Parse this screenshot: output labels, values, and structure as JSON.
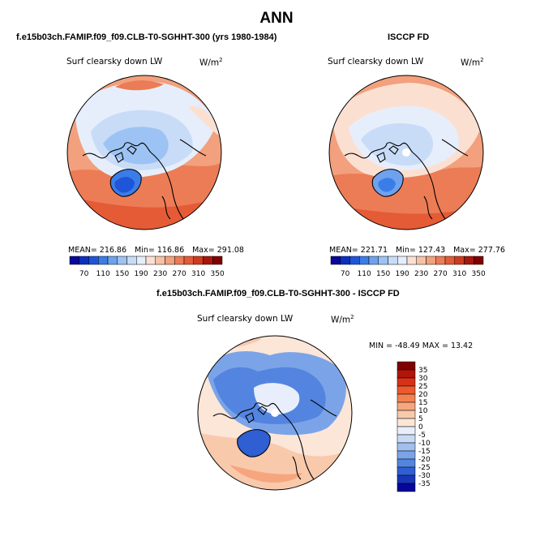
{
  "title": "ANN",
  "panel_left": {
    "case": "f.e15b03ch.FAMIP.f09_f09.CLB-T0-SGHHT-300 (yrs 1980-1984)",
    "variable": "Surf clearsky down LW",
    "units_base": "W/m",
    "units_exp": "2",
    "mean_text": "MEAN= 216.86",
    "min_text": "Min= 116.86",
    "max_text": "Max= 291.08"
  },
  "panel_right": {
    "case": "ISCCP FD",
    "variable": "Surf clearsky down LW",
    "units_base": "W/m",
    "units_exp": "2",
    "mean_text": "MEAN= 221.71",
    "min_text": "Min= 127.43",
    "max_text": "Max= 277.76"
  },
  "panel_diff": {
    "case": "f.e15b03ch.FAMIP.f09_f09.CLB-T0-SGHHT-300 - ISCCP FD",
    "variable": "Surf clearsky down LW",
    "units_base": "W/m",
    "units_exp": "2",
    "minmax_text": "MIN = -48.49 MAX =  13.42"
  },
  "chart_data": [
    {
      "type": "heatmap",
      "title": "Surf clearsky down LW",
      "projection": "north polar stereographic",
      "units": "W/m2",
      "stats": {
        "mean": 216.86,
        "min": 116.86,
        "max": 291.08
      },
      "colorbar": {
        "labels": [
          "70",
          "110",
          "150",
          "190",
          "230",
          "270",
          "310",
          "350"
        ],
        "colors": [
          "#08089a",
          "#0d2fbf",
          "#1f55d8",
          "#3b7de6",
          "#6fa2ee",
          "#9cc3f3",
          "#c8dcf8",
          "#e6eefb",
          "#fbe0d2",
          "#f6c2a7",
          "#f2a07d",
          "#ec7c56",
          "#e45b36",
          "#cf3b1c",
          "#a8170c",
          "#7f0000"
        ]
      }
    },
    {
      "type": "heatmap",
      "title": "Surf clearsky down LW",
      "projection": "north polar stereographic",
      "units": "W/m2",
      "stats": {
        "mean": 221.71,
        "min": 127.43,
        "max": 277.76
      },
      "colorbar": {
        "labels": [
          "70",
          "110",
          "150",
          "190",
          "230",
          "270",
          "310",
          "350"
        ],
        "colors": [
          "#08089a",
          "#0d2fbf",
          "#1f55d8",
          "#3b7de6",
          "#6fa2ee",
          "#9cc3f3",
          "#c8dcf8",
          "#e6eefb",
          "#fbe0d2",
          "#f6c2a7",
          "#f2a07d",
          "#ec7c56",
          "#e45b36",
          "#cf3b1c",
          "#a8170c",
          "#7f0000"
        ]
      }
    },
    {
      "type": "heatmap",
      "title": "Surf clearsky down LW",
      "projection": "north polar stereographic",
      "units": "W/m2",
      "stats": {
        "min": -48.49,
        "max": 13.42
      },
      "colorbar": {
        "labels": [
          "35",
          "30",
          "25",
          "20",
          "15",
          "10",
          "5",
          "0",
          "-5",
          "-10",
          "-15",
          "-20",
          "-25",
          "-30",
          "-35"
        ],
        "colors": [
          "#7f0000",
          "#b2150a",
          "#d73219",
          "#ec5a2d",
          "#f38251",
          "#f6a67e",
          "#f9c9ac",
          "#fbe6d8",
          "#e8eefb",
          "#c8daf6",
          "#a1c0ef",
          "#7ba4e8",
          "#5384e0",
          "#2f5fd2",
          "#1737b8",
          "#06069a"
        ]
      }
    }
  ]
}
